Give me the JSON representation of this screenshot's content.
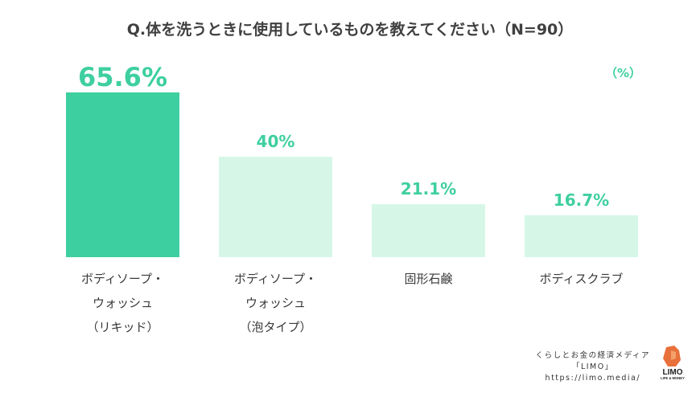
{
  "title": "Q.体を洗うときに使用しているものを教えてください（N=90）",
  "unit_label": "（%）",
  "chart_data": {
    "type": "bar",
    "title": "Q.体を洗うときに使用しているものを教えてください（N=90）",
    "unit": "（%）",
    "categories": [
      [
        "ボディソープ・",
        "ウォッシュ",
        "（リキッド）"
      ],
      [
        "ボディソープ・",
        "ウォッシュ",
        "（泡タイプ）"
      ],
      [
        "固形石鹸"
      ],
      [
        "ボディスクラブ"
      ]
    ],
    "values": [
      65.6,
      40,
      21.1,
      16.7
    ],
    "value_labels": [
      "65.6%",
      "40%",
      "21.1%",
      "16.7%"
    ],
    "ylim": [
      0,
      70
    ],
    "colors": {
      "highlight": "#3ecfa0",
      "normal": "#d6f7e8",
      "label": "#3ecfa0"
    }
  },
  "branding": {
    "tagline": "くらしとお金の経済メディア",
    "name": "「LIMO」",
    "url": "https://limo.media/",
    "logo_text": "LIMO",
    "logo_sub": "LIFE & MONEY"
  }
}
